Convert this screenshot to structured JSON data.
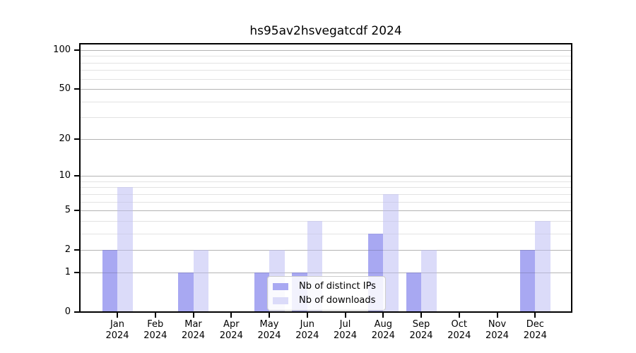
{
  "title": "hs95av2hsvegatcdf 2024",
  "chart_data": {
    "type": "bar",
    "title": "hs95av2hsvegatcdf 2024",
    "scale": "log1p",
    "grid": "on",
    "legend_position": "lower center",
    "categories": [
      "Jan",
      "Feb",
      "Mar",
      "Apr",
      "May",
      "Jun",
      "Jul",
      "Aug",
      "Sep",
      "Oct",
      "Nov",
      "Dec"
    ],
    "year_line": "2024",
    "series": [
      {
        "name": "Nb of distinct IPs",
        "color": "#a8a8f2",
        "values": [
          2,
          0,
          1,
          0,
          1,
          1,
          0,
          3,
          1,
          0,
          0,
          2
        ]
      },
      {
        "name": "Nb of downloads",
        "color": "#dbdbf9",
        "values": [
          8,
          0,
          2,
          0,
          2,
          4,
          0,
          7,
          2,
          0,
          0,
          4
        ]
      }
    ],
    "yticks": [
      0,
      1,
      2,
      5,
      10,
      20,
      50,
      100
    ],
    "minor_gridlines": [
      3,
      4,
      6,
      7,
      8,
      9,
      30,
      40,
      60,
      70,
      80,
      90
    ],
    "ylim": [
      0,
      100
    ],
    "xlabel": "",
    "ylabel": ""
  },
  "colors": {
    "axis": "#000000",
    "major_grid": "#d6d6d6",
    "minor_grid": "#f1f1f1",
    "background": "#ffffff"
  }
}
